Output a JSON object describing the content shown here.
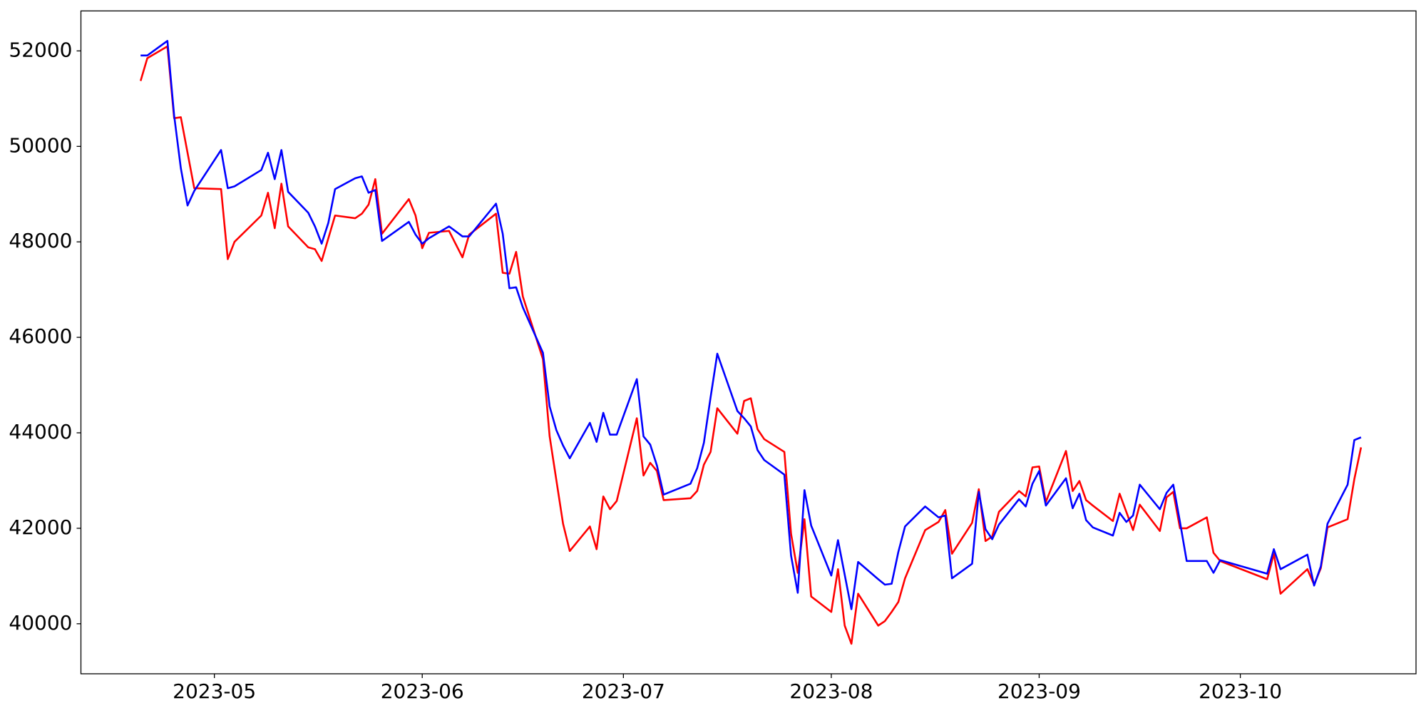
{
  "chart_data": {
    "type": "line",
    "x": [
      19467,
      19468,
      19471,
      19472,
      19473,
      19474,
      19475,
      19479,
      19480,
      19481,
      19485,
      19486,
      19487,
      19488,
      19489,
      19492,
      19493,
      19494,
      19495,
      19496,
      19499,
      19500,
      19501,
      19502,
      19503,
      19507,
      19508,
      19509,
      19510,
      19513,
      19515,
      19516,
      19520,
      19521,
      19522,
      19523,
      19524,
      19527,
      19528,
      19529,
      19530,
      19531,
      19534,
      19535,
      19536,
      19537,
      19538,
      19541,
      19542,
      19543,
      19544,
      19545,
      19549,
      19550,
      19551,
      19552,
      19553,
      19556,
      19557,
      19558,
      19559,
      19560,
      19563,
      19564,
      19565,
      19566,
      19567,
      19570,
      19571,
      19572,
      19573,
      19574,
      19577,
      19578,
      19579,
      19580,
      19581,
      19584,
      19586,
      19587,
      19588,
      19591,
      19592,
      19593,
      19594,
      19595,
      19598,
      19599,
      19600,
      19601,
      19602,
      19605,
      19606,
      19607,
      19608,
      19609,
      19612,
      19613,
      19614,
      19615,
      19616,
      19619,
      19620,
      19621,
      19622,
      19623,
      19626,
      19627,
      19628,
      19635,
      19636,
      19637,
      19641,
      19642,
      19643,
      19644,
      19647,
      19648,
      19649
    ],
    "series": [
      {
        "color": "#ff0000",
        "values": [
          51371,
          51848,
          52095,
          50590,
          50610,
          49866,
          49124,
          49105,
          47638,
          48000,
          48552,
          49029,
          48286,
          49219,
          48324,
          47885,
          47847,
          47600,
          48076,
          48552,
          48495,
          48590,
          48781,
          49314,
          48171,
          48895,
          48552,
          47867,
          48190,
          48229,
          47676,
          48152,
          48590,
          47352,
          47333,
          47790,
          46857,
          45543,
          43924,
          43009,
          42095,
          41524,
          42038,
          41562,
          42667,
          42400,
          42571,
          44305,
          43105,
          43371,
          43200,
          42590,
          42629,
          42781,
          43333,
          43600,
          44514,
          43981,
          44667,
          44724,
          44076,
          43867,
          43600,
          41886,
          41067,
          42190,
          40571,
          40248,
          41143,
          39962,
          39581,
          40629,
          39962,
          40057,
          40248,
          40457,
          40952,
          41962,
          42133,
          42381,
          41467,
          42114,
          42819,
          41733,
          41829,
          42343,
          42781,
          42667,
          43276,
          43295,
          42552,
          43619,
          42781,
          42990,
          42590,
          42476,
          42152,
          42724,
          42343,
          41962,
          42495,
          41943,
          42648,
          42762,
          42000,
          42000,
          42229,
          41486,
          41314,
          40933,
          41467,
          40629,
          41143,
          40819,
          41162,
          42019,
          42190,
          43029,
          43695
        ]
      },
      {
        "color": "#0000ff",
        "values": [
          51905,
          51905,
          52210,
          50647,
          49543,
          48762,
          49067,
          49924,
          49124,
          49162,
          49505,
          49867,
          49314,
          49924,
          49048,
          48610,
          48324,
          47962,
          48400,
          49105,
          49333,
          49371,
          49029,
          49086,
          48019,
          48419,
          48152,
          47962,
          48076,
          48324,
          48114,
          48114,
          48800,
          48171,
          47029,
          47048,
          46628,
          45676,
          44552,
          44057,
          43733,
          43467,
          44210,
          43810,
          44419,
          43962,
          43962,
          45124,
          43924,
          43752,
          43314,
          42705,
          42933,
          43257,
          43790,
          44743,
          45657,
          44457,
          44305,
          44133,
          43638,
          43429,
          43124,
          41429,
          40648,
          42800,
          42057,
          41010,
          41752,
          41029,
          40305,
          41295,
          40933,
          40819,
          40838,
          41505,
          42038,
          42457,
          42229,
          42267,
          40952,
          41257,
          42762,
          41981,
          41771,
          42076,
          42610,
          42457,
          42933,
          43200,
          42476,
          43048,
          42419,
          42724,
          42171,
          42019,
          41848,
          42324,
          42133,
          42267,
          42914,
          42400,
          42743,
          42914,
          42133,
          41314,
          41314,
          41067,
          41333,
          41048,
          41562,
          41143,
          41448,
          40800,
          41200,
          42095,
          42914,
          43848,
          43905
        ]
      }
    ],
    "xlim": [
      19458.1,
      19657.2
    ],
    "xticks": [
      {
        "value": 19478,
        "label": "2023-05"
      },
      {
        "value": 19509,
        "label": "2023-06"
      },
      {
        "value": 19539,
        "label": "2023-07"
      },
      {
        "value": 19570,
        "label": "2023-08"
      },
      {
        "value": 19601,
        "label": "2023-09"
      },
      {
        "value": 19631,
        "label": "2023-10"
      }
    ],
    "ylim": [
      38952,
      52838
    ],
    "yticks": [
      40000,
      42000,
      44000,
      46000,
      48000,
      50000,
      52000
    ]
  }
}
